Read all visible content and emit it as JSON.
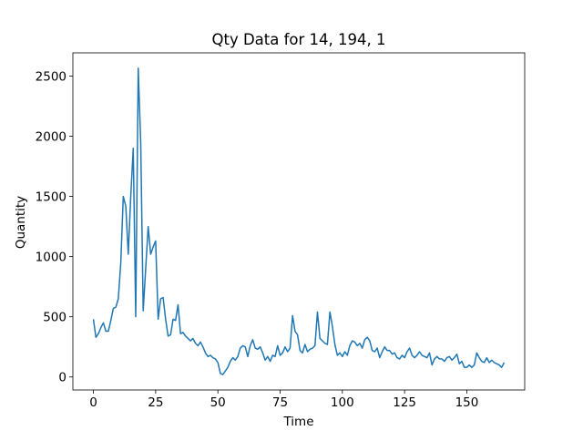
{
  "chart_data": {
    "type": "line",
    "title": "Qty Data for 14, 194, 1",
    "x_label": "Time",
    "y_label": "Quantity",
    "x": [
      0,
      1,
      2,
      3,
      4,
      5,
      6,
      7,
      8,
      9,
      10,
      11,
      12,
      13,
      14,
      15,
      16,
      17,
      18,
      19,
      20,
      21,
      22,
      23,
      24,
      25,
      26,
      27,
      28,
      29,
      30,
      31,
      32,
      33,
      34,
      35,
      36,
      37,
      38,
      39,
      40,
      41,
      42,
      43,
      44,
      45,
      46,
      47,
      48,
      49,
      50,
      51,
      52,
      53,
      54,
      55,
      56,
      57,
      58,
      59,
      60,
      61,
      62,
      63,
      64,
      65,
      66,
      67,
      68,
      69,
      70,
      71,
      72,
      73,
      74,
      75,
      76,
      77,
      78,
      79,
      80,
      81,
      82,
      83,
      84,
      85,
      86,
      87,
      88,
      89,
      90,
      91,
      92,
      93,
      94,
      95,
      96,
      97,
      98,
      99,
      100,
      101,
      102,
      103,
      104,
      105,
      106,
      107,
      108,
      109,
      110,
      111,
      112,
      113,
      114,
      115,
      116,
      117,
      118,
      119,
      120,
      121,
      122,
      123,
      124,
      125,
      126,
      127,
      128,
      129,
      130,
      131,
      132,
      133,
      134,
      135,
      136,
      137,
      138,
      139,
      140,
      141,
      142,
      143,
      144,
      145,
      146,
      147,
      148,
      149,
      150,
      151,
      152,
      153,
      154,
      155,
      156,
      157,
      158,
      159,
      160,
      161,
      162,
      163,
      164,
      165
    ],
    "series": [
      {
        "name": "Quantity",
        "color": "#1f77b4",
        "values": [
          480,
          330,
          360,
          410,
          450,
          380,
          380,
          470,
          570,
          580,
          650,
          950,
          1500,
          1420,
          1020,
          1500,
          1900,
          500,
          2565,
          1950,
          550,
          900,
          1250,
          1020,
          1080,
          1130,
          480,
          650,
          660,
          480,
          340,
          350,
          480,
          470,
          600,
          360,
          370,
          340,
          320,
          300,
          320,
          280,
          260,
          290,
          250,
          200,
          170,
          180,
          160,
          150,
          120,
          30,
          20,
          50,
          80,
          130,
          160,
          140,
          170,
          240,
          260,
          250,
          170,
          260,
          310,
          240,
          230,
          250,
          200,
          140,
          170,
          130,
          180,
          170,
          260,
          180,
          200,
          250,
          210,
          240,
          510,
          380,
          350,
          220,
          200,
          270,
          210,
          230,
          240,
          260,
          540,
          320,
          300,
          280,
          270,
          540,
          420,
          270,
          180,
          200,
          170,
          210,
          180,
          260,
          300,
          290,
          260,
          280,
          240,
          310,
          330,
          300,
          220,
          210,
          240,
          160,
          210,
          250,
          220,
          220,
          190,
          200,
          160,
          150,
          180,
          160,
          210,
          240,
          180,
          160,
          180,
          210,
          180,
          170,
          160,
          200,
          100,
          150,
          170,
          150,
          150,
          130,
          160,
          170,
          140,
          160,
          190,
          110,
          130,
          80,
          80,
          100,
          80,
          100,
          200,
          160,
          130,
          120,
          160,
          120,
          140,
          120,
          110,
          100,
          80,
          120
        ]
      }
    ],
    "xlim": [
      -8.25,
      173.25
    ],
    "ylim": [
      -108,
      2693
    ],
    "xticks": [
      0,
      25,
      50,
      75,
      100,
      125,
      150
    ],
    "yticks": [
      0,
      500,
      1000,
      1500,
      2000,
      2500
    ]
  }
}
